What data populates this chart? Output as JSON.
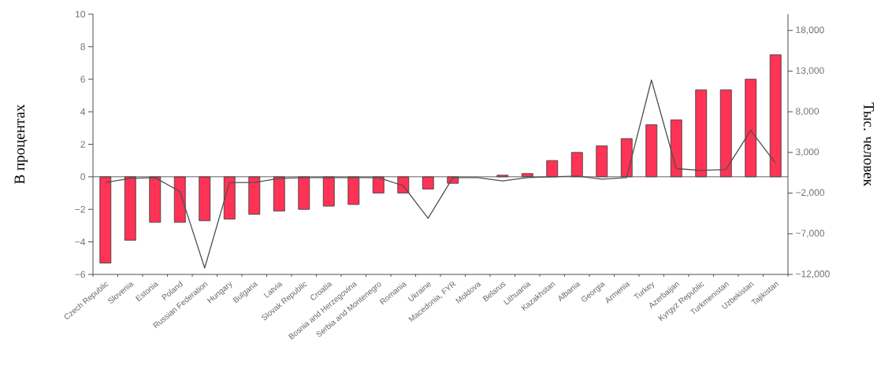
{
  "chart_data": {
    "type": "bar",
    "ylabel": "В процентах",
    "y2label": "Тыс. человек",
    "categories": [
      "Czech Republic",
      "Slovenia",
      "Estonia",
      "Poland",
      "Russian Federation",
      "Hungary",
      "Bulgaria",
      "Latvia",
      "Slovak Republic",
      "Croatia",
      "Bosnia and Herzegovina",
      "Serbia and Montenegro",
      "Romania",
      "Ukraine",
      "Macedonia, FYR",
      "Moldova",
      "Belarus",
      "Lithuania",
      "Kazakhstan",
      "Albania",
      "Georgia",
      "Armenia",
      "Turkey",
      "Azerbaijan",
      "Kyrgyz Republic",
      "Turkmenistan",
      "Uzbekistan",
      "Tajikistan"
    ],
    "series": [
      {
        "color": "#ff3355",
        "values": [
          -5.3,
          -3.9,
          -2.8,
          -2.8,
          -2.7,
          -2.6,
          -2.3,
          -2.1,
          -2.0,
          -1.8,
          -1.7,
          -1.0,
          -1.0,
          -0.75,
          -0.4,
          null,
          0.1,
          0.2,
          1.0,
          1.5,
          1.9,
          2.35,
          3.2,
          3.5,
          5.35,
          5.35,
          6.0,
          7.5
        ]
      },
      {
        "type": "line",
        "axis": "y2",
        "color": "#505050",
        "values": [
          -700,
          -200,
          -100,
          -1800,
          -11200,
          -700,
          -700,
          -200,
          -100,
          -100,
          -100,
          -100,
          -1100,
          -5100,
          -100,
          -100,
          -500,
          -100,
          0,
          100,
          -300,
          -100,
          11900,
          1000,
          800,
          900,
          5700,
          1700
        ]
      }
    ],
    "ylim": [
      -6,
      10
    ],
    "yticks": [
      {
        "value": -6,
        "label": "−6"
      },
      {
        "value": -4,
        "label": "−4"
      },
      {
        "value": -2,
        "label": "−2"
      },
      0,
      2,
      4,
      6,
      8,
      10
    ],
    "y2lim": [
      -12000,
      20000
    ],
    "y2ticks": [
      {
        "value": -12000,
        "label": "−12,000"
      },
      {
        "value": -7000,
        "label": "−7,000"
      },
      {
        "value": -2000,
        "label": "−2,000"
      },
      {
        "value": 3000,
        "label": "3,000"
      },
      {
        "value": 8000,
        "label": "8,000"
      },
      {
        "value": 13000,
        "label": "13,000"
      },
      {
        "value": 18000,
        "label": "18,000"
      }
    ],
    "ref_lines": [
      {
        "axis": "y",
        "value": 0,
        "color": "#505050"
      }
    ]
  }
}
